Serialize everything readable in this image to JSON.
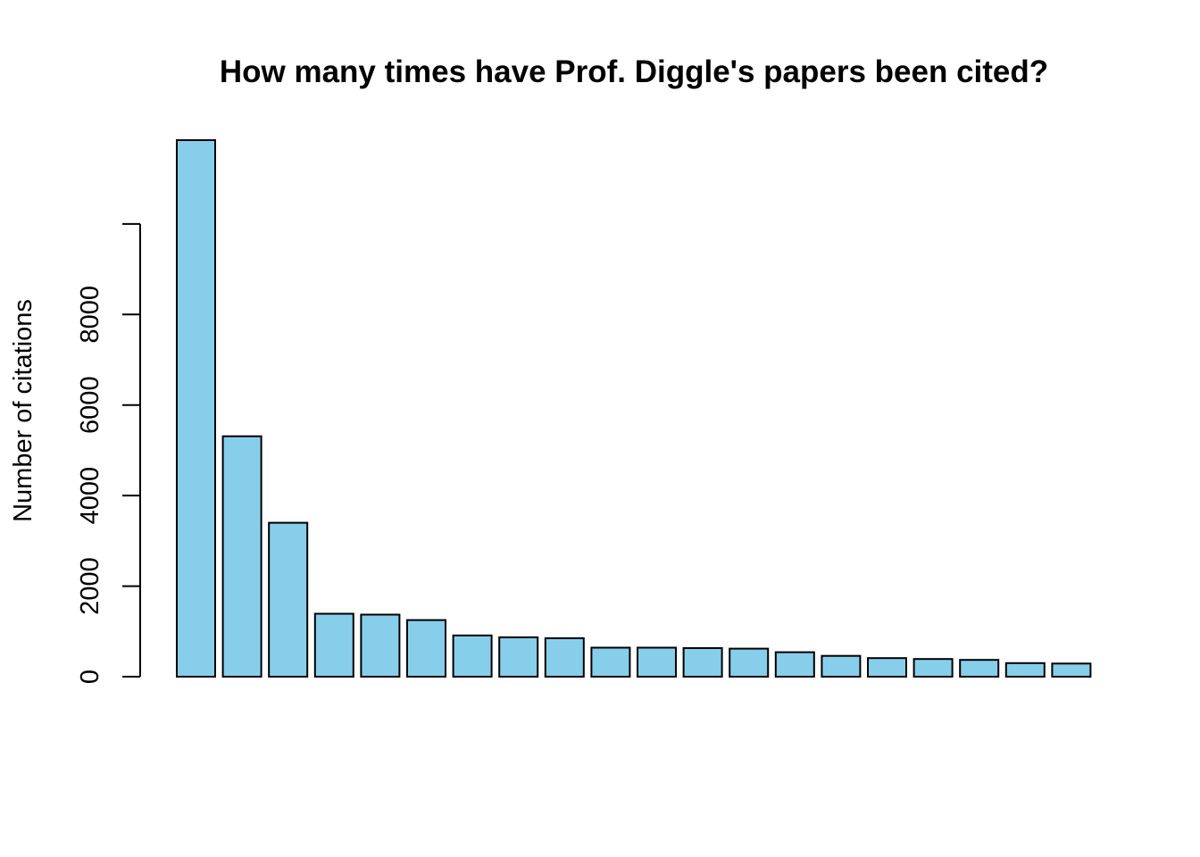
{
  "chart_data": {
    "type": "bar",
    "title": "How many times have Prof. Diggle's papers been cited?",
    "xlabel": "",
    "ylabel": "Number of citations",
    "ylim": [
      0,
      11850
    ],
    "y_ticks": [
      "0",
      "2000",
      "4000",
      "6000",
      "8000",
      ""
    ],
    "y_tick_values": [
      0,
      2000,
      4000,
      6000,
      8000,
      10000
    ],
    "grid": false,
    "legend": "none",
    "bar_color": "#87CEEB",
    "values": [
      11850,
      5310,
      3400,
      1390,
      1370,
      1250,
      910,
      870,
      850,
      640,
      640,
      630,
      620,
      540,
      460,
      410,
      390,
      370,
      300,
      290
    ]
  }
}
